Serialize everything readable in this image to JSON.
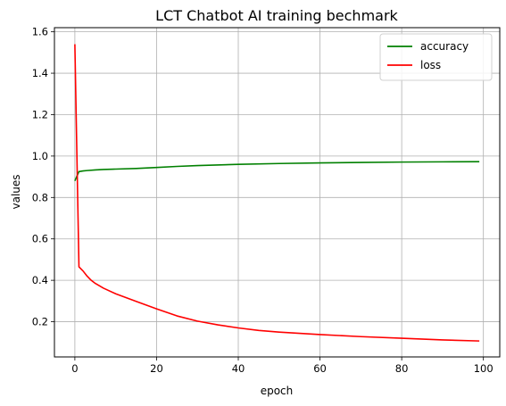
{
  "chart_data": {
    "type": "line",
    "title": "LCT Chatbot AI training bechmark",
    "xlabel": "epoch",
    "ylabel": "values",
    "xlim": [
      -5,
      104
    ],
    "ylim": [
      0.03,
      1.62
    ],
    "xticks": [
      0,
      20,
      40,
      60,
      80,
      100
    ],
    "yticks": [
      0.2,
      0.4,
      0.6,
      0.8,
      1.0,
      1.2,
      1.4,
      1.6
    ],
    "xtick_labels": [
      "0",
      "20",
      "40",
      "60",
      "80",
      "100"
    ],
    "ytick_labels": [
      "0.2",
      "0.4",
      "0.6",
      "0.8",
      "1.0",
      "1.2",
      "1.4",
      "1.6"
    ],
    "grid": true,
    "legend_position": "top-right",
    "series": [
      {
        "name": "accuracy",
        "color": "#008000",
        "points": [
          [
            0,
            0.88
          ],
          [
            1,
            0.925
          ],
          [
            2,
            0.928
          ],
          [
            3,
            0.93
          ],
          [
            5,
            0.933
          ],
          [
            7,
            0.935
          ],
          [
            10,
            0.937
          ],
          [
            15,
            0.94
          ],
          [
            20,
            0.945
          ],
          [
            25,
            0.95
          ],
          [
            30,
            0.954
          ],
          [
            40,
            0.96
          ],
          [
            50,
            0.964
          ],
          [
            60,
            0.967
          ],
          [
            70,
            0.969
          ],
          [
            80,
            0.971
          ],
          [
            90,
            0.972
          ],
          [
            99,
            0.973
          ]
        ]
      },
      {
        "name": "loss",
        "color": "#ff0000",
        "points": [
          [
            0,
            1.54
          ],
          [
            1,
            0.465
          ],
          [
            2,
            0.445
          ],
          [
            3,
            0.42
          ],
          [
            4,
            0.4
          ],
          [
            5,
            0.385
          ],
          [
            7,
            0.362
          ],
          [
            10,
            0.335
          ],
          [
            15,
            0.298
          ],
          [
            20,
            0.262
          ],
          [
            25,
            0.228
          ],
          [
            30,
            0.203
          ],
          [
            35,
            0.185
          ],
          [
            40,
            0.17
          ],
          [
            45,
            0.158
          ],
          [
            50,
            0.15
          ],
          [
            60,
            0.138
          ],
          [
            70,
            0.128
          ],
          [
            80,
            0.12
          ],
          [
            90,
            0.112
          ],
          [
            99,
            0.107
          ]
        ]
      }
    ]
  }
}
